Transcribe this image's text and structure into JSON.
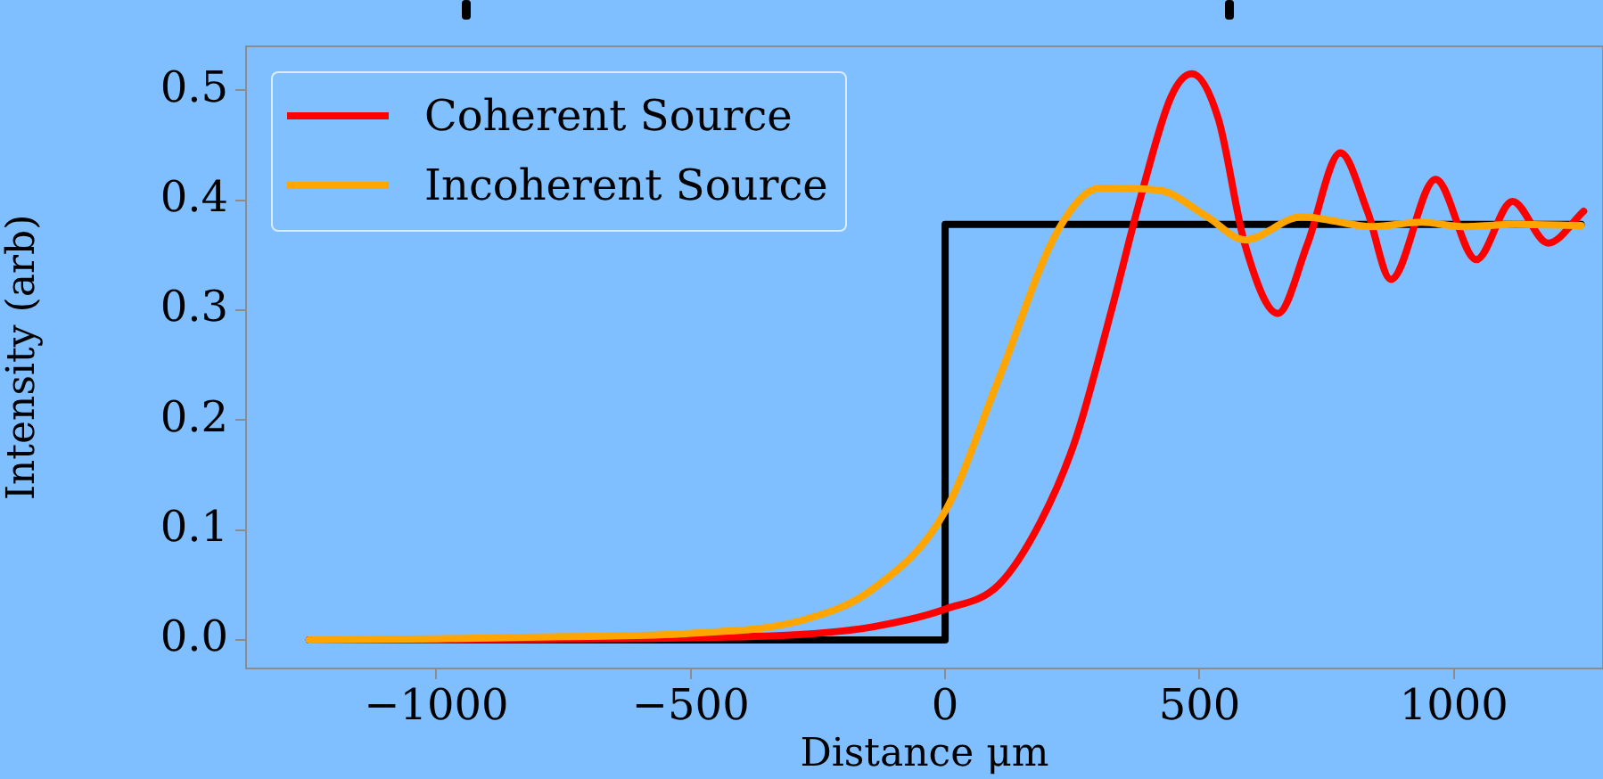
{
  "chart_data": {
    "type": "line",
    "xlabel": "Distance μm",
    "ylabel": "Intensity (arb)",
    "xlim": [
      -1374,
      1293
    ],
    "ylim": [
      -0.026,
      0.54
    ],
    "xticks": [
      {
        "value": -1000,
        "label": "−1000"
      },
      {
        "value": -500,
        "label": "−500"
      },
      0,
      500,
      1000
    ],
    "yticks": [
      {
        "value": 0,
        "label": "0.0"
      },
      0.1,
      0.2,
      0.3,
      0.4,
      0.5
    ],
    "grid": false,
    "legend": "top left",
    "line_style": "solid",
    "marker": "none",
    "series": [
      {
        "type": "step",
        "color": "#000000",
        "x": [
          -1250,
          0,
          1250
        ],
        "values": [
          0,
          0.378,
          0.378
        ]
      },
      {
        "name": "Coherent Source",
        "color": "#ff0000",
        "x": [
          -1250,
          -1000,
          -750,
          -500,
          -280,
          -140,
          0,
          105,
          187,
          256,
          327,
          385,
          444,
          485,
          537,
          589,
          654,
          712,
          777,
          830,
          876,
          964,
          1044,
          1115,
          1185,
          1255
        ],
        "values": [
          0,
          0,
          0.001,
          0.002,
          0.005,
          0.012,
          0.028,
          0.05,
          0.107,
          0.182,
          0.3,
          0.404,
          0.494,
          0.515,
          0.474,
          0.36,
          0.297,
          0.36,
          0.443,
          0.39,
          0.328,
          0.419,
          0.346,
          0.399,
          0.361,
          0.39
        ]
      },
      {
        "name": "Incoherent Source",
        "color": "#ffa500",
        "x": [
          -1250,
          -1000,
          -750,
          -500,
          -280,
          -140,
          0,
          105,
          221,
          305,
          421,
          515,
          589,
          701,
          841,
          936,
          1016,
          1121,
          1250
        ],
        "values": [
          0,
          0.001,
          0.003,
          0.006,
          0.018,
          0.047,
          0.117,
          0.237,
          0.372,
          0.411,
          0.409,
          0.385,
          0.364,
          0.385,
          0.376,
          0.38,
          0.376,
          0.378,
          0.377
        ]
      }
    ]
  }
}
